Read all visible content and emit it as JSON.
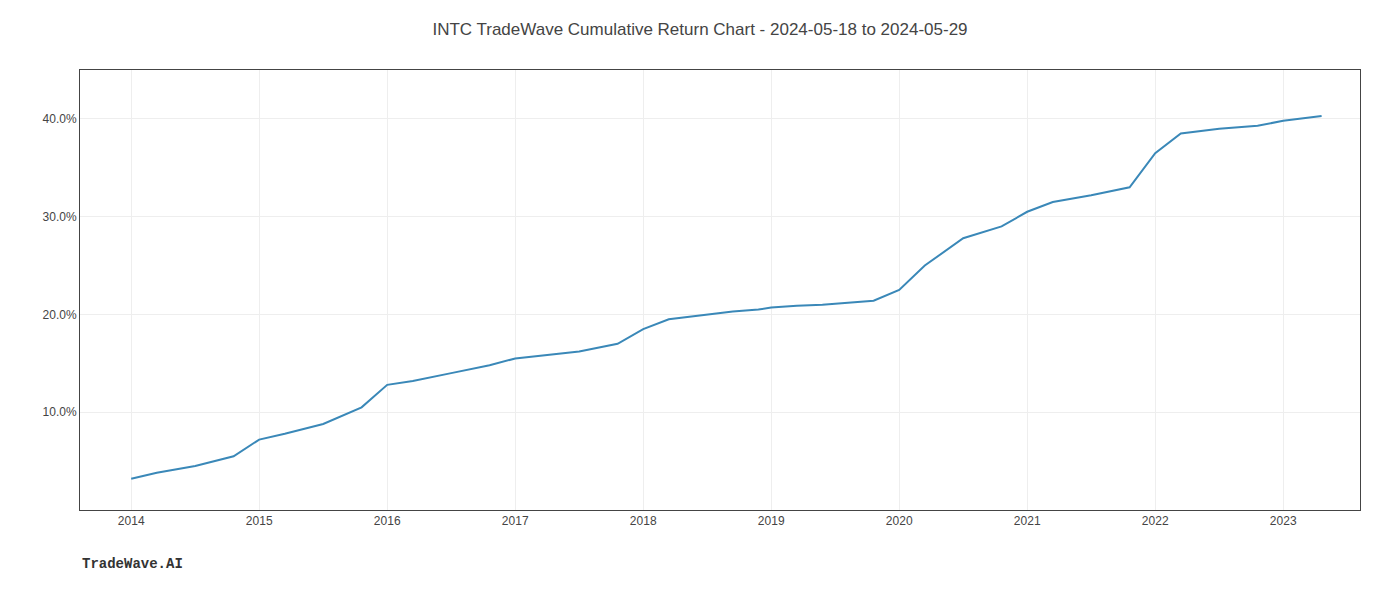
{
  "chart_data": {
    "type": "line",
    "title": "INTC TradeWave Cumulative Return Chart - 2024-05-18 to 2024-05-29",
    "annotations": [
      "TradeWave.AI"
    ],
    "x": [
      2014.0,
      2014.2,
      2014.5,
      2014.8,
      2015.0,
      2015.2,
      2015.5,
      2015.8,
      2016.0,
      2016.2,
      2016.5,
      2016.8,
      2017.0,
      2017.2,
      2017.5,
      2017.8,
      2018.0,
      2018.2,
      2018.5,
      2018.7,
      2018.9,
      2019.0,
      2019.2,
      2019.4,
      2019.6,
      2019.8,
      2020.0,
      2020.2,
      2020.5,
      2020.8,
      2021.0,
      2021.2,
      2021.5,
      2021.8,
      2022.0,
      2022.2,
      2022.5,
      2022.8,
      2023.0,
      2023.3
    ],
    "values": [
      3.2,
      3.8,
      4.5,
      5.5,
      7.2,
      7.8,
      8.8,
      10.5,
      12.8,
      13.2,
      14.0,
      14.8,
      15.5,
      15.8,
      16.2,
      17.0,
      18.5,
      19.5,
      20.0,
      20.3,
      20.5,
      20.7,
      20.9,
      21.0,
      21.2,
      21.4,
      22.5,
      25.0,
      27.8,
      29.0,
      30.5,
      31.5,
      32.2,
      33.0,
      36.5,
      38.5,
      39.0,
      39.3,
      39.8,
      40.3
    ],
    "color": "#3a88b8",
    "xlim": [
      2013.6,
      2023.6
    ],
    "xticks": [
      2014,
      2015,
      2016,
      2017,
      2018,
      2019,
      2020,
      2021,
      2022,
      2023
    ],
    "ylim": [
      0,
      45
    ],
    "yticks": [
      {
        "value": 10.0,
        "label": "10.0%"
      },
      {
        "value": 20.0,
        "label": "20.0%"
      },
      {
        "value": 30.0,
        "label": "30.0%"
      },
      {
        "value": 40.0,
        "label": "40.0%"
      }
    ],
    "grid": true
  }
}
